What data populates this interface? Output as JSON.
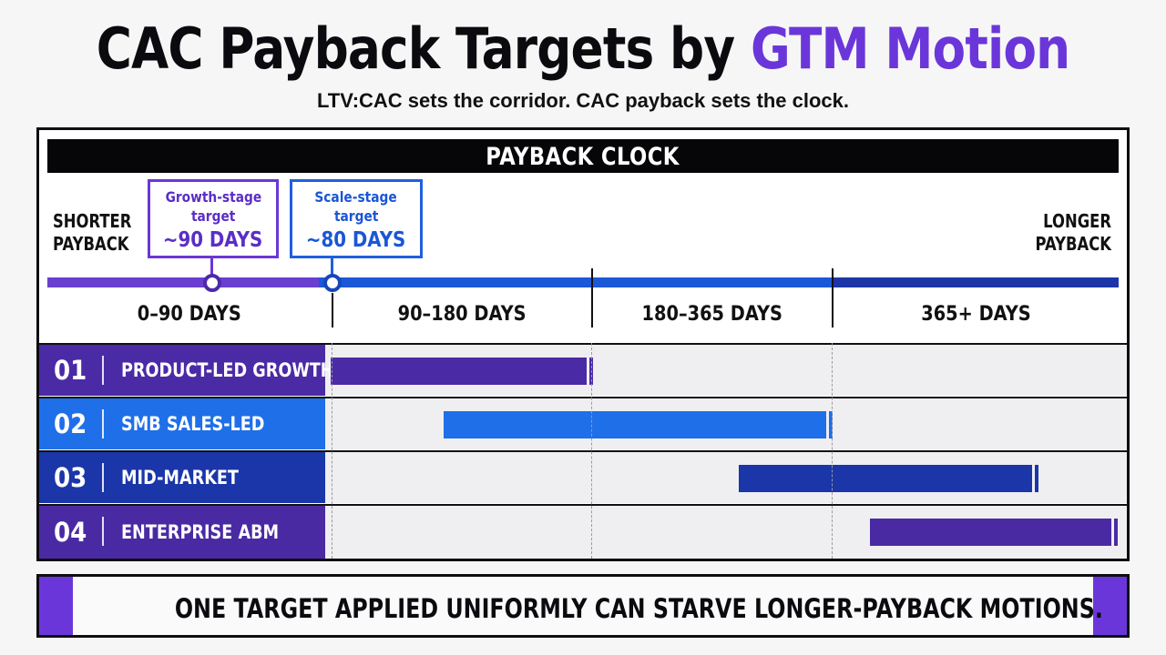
{
  "title": {
    "main": "CAC Payback Targets by",
    "accent": "GTM Motion",
    "accent_color": "#6b36d9"
  },
  "subtitle": "LTV:CAC sets the corridor. CAC payback sets the clock.",
  "clock": {
    "header": "PAYBACK CLOCK",
    "shorter_label": [
      "SHORTER",
      "PAYBACK"
    ],
    "longer_label": [
      "LONGER",
      "PAYBACK"
    ],
    "markers": [
      {
        "label": [
          "Growth-stage",
          "target"
        ],
        "days_label": "~90 DAYS",
        "days": 90,
        "color": "#6b36d9"
      },
      {
        "label": [
          "Scale-stage",
          "target"
        ],
        "days_label": "~80 DAYS",
        "days": 80,
        "color": "#1f5fe0"
      }
    ],
    "ranges": [
      "0–90 DAYS",
      "90–180 DAYS",
      "180–365 DAYS",
      "365+ DAYS"
    ],
    "axis_colors": [
      "#6a3fd0",
      "#1b58d8",
      "#1d36a7"
    ]
  },
  "motions": [
    {
      "num": "01",
      "name": "PRODUCT-LED GROWTH",
      "color": "#4b2aa6",
      "bar_color": "#4b2aa6"
    },
    {
      "num": "02",
      "name": "SMB SALES-LED",
      "color": "#1f6fe8",
      "bar_color": "#1f6fe8"
    },
    {
      "num": "03",
      "name": "MID-MARKET",
      "color": "#1a36a8",
      "bar_color": "#1a36a8"
    },
    {
      "num": "04",
      "name": "ENTERPRISE ABM",
      "color": "#4a2aa3",
      "bar_color": "#4a2aa3"
    }
  ],
  "banner": "ONE TARGET APPLIED UNIFORMLY CAN STARVE LONGER-PAYBACK MOTIONS."
}
